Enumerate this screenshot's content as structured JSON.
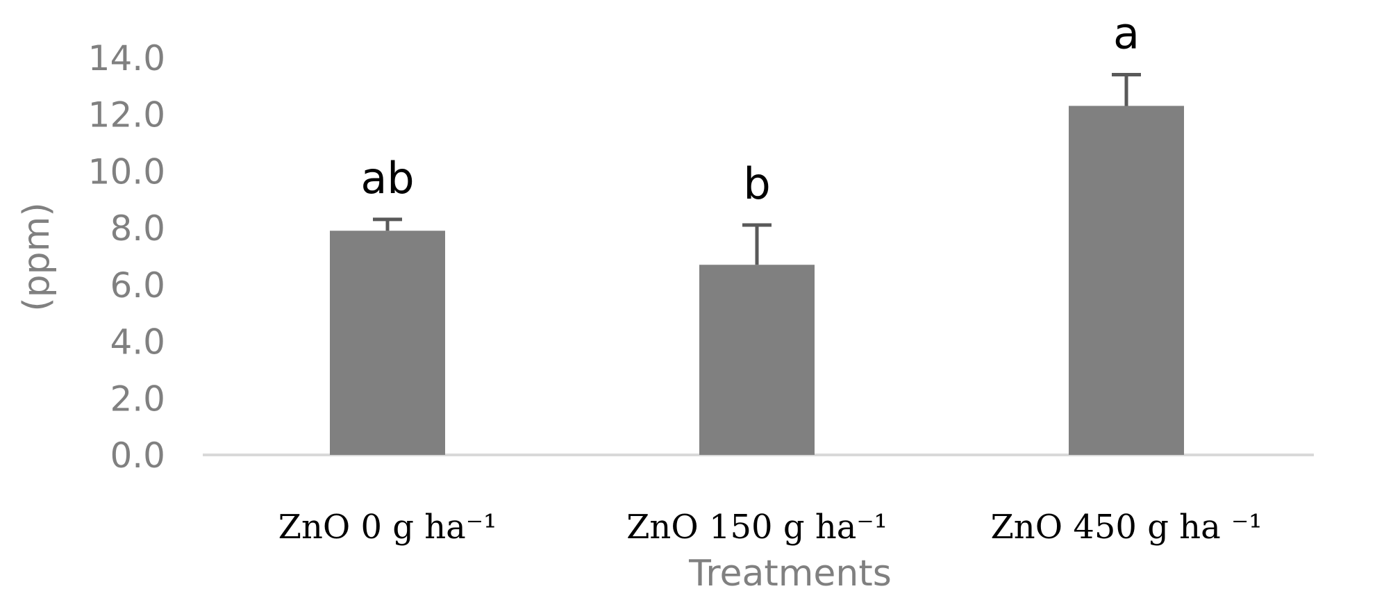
{
  "chart_data": {
    "type": "bar",
    "categories": [
      "ZnO 0 g ha⁻¹",
      "ZnO 150 g ha⁻¹",
      "ZnO 450 g  ha ⁻¹"
    ],
    "values": [
      7.9,
      6.7,
      12.3
    ],
    "error_upper": [
      8.3,
      8.1,
      13.4
    ],
    "significance_letters": [
      "ab",
      "b",
      "a"
    ],
    "ylabel": "(ppm)",
    "xlabel": "Treatments",
    "ylim": [
      0,
      14
    ],
    "yticks": [
      "0.0",
      "2.0",
      "4.0",
      "6.0",
      "8.0",
      "10.0",
      "12.0",
      "14.0"
    ],
    "grid": false,
    "legend": "none",
    "colors": {
      "bar": "#808080",
      "error": "#595959",
      "axis": "#d9d9d9",
      "tick_text": "#808080"
    }
  }
}
